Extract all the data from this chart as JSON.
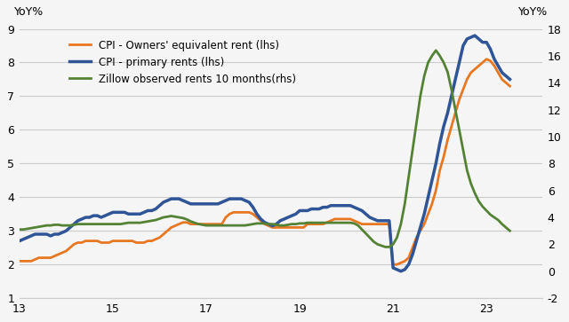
{
  "ylabel_left": "YoY%",
  "ylabel_right": "YoY%",
  "xlim": [
    13,
    24.2
  ],
  "ylim_left": [
    1,
    9
  ],
  "ylim_right": [
    -2,
    18
  ],
  "yticks_left": [
    1,
    2,
    3,
    4,
    5,
    6,
    7,
    8,
    9
  ],
  "yticks_right": [
    -2,
    0,
    2,
    4,
    6,
    8,
    10,
    12,
    14,
    16,
    18
  ],
  "xticks": [
    13,
    15,
    17,
    19,
    21,
    23
  ],
  "legend": [
    {
      "label": "CPI - Owners' equivalent rent (lhs)",
      "color": "#E87722",
      "lw": 2.0
    },
    {
      "label": "CPI - primary rents (lhs)",
      "color": "#2F5597",
      "lw": 2.5
    },
    {
      "label": "Zillow observed rents 10 months(rhs)",
      "color": "#548235",
      "lw": 2.0
    }
  ],
  "owners_eq_rent": {
    "x": [
      13.0,
      13.083,
      13.167,
      13.25,
      13.333,
      13.417,
      13.5,
      13.583,
      13.667,
      13.75,
      13.833,
      13.917,
      14.0,
      14.083,
      14.167,
      14.25,
      14.333,
      14.417,
      14.5,
      14.583,
      14.667,
      14.75,
      14.833,
      14.917,
      15.0,
      15.083,
      15.167,
      15.25,
      15.333,
      15.417,
      15.5,
      15.583,
      15.667,
      15.75,
      15.833,
      15.917,
      16.0,
      16.083,
      16.167,
      16.25,
      16.333,
      16.417,
      16.5,
      16.583,
      16.667,
      16.75,
      16.833,
      16.917,
      17.0,
      17.083,
      17.167,
      17.25,
      17.333,
      17.417,
      17.5,
      17.583,
      17.667,
      17.75,
      17.833,
      17.917,
      18.0,
      18.083,
      18.167,
      18.25,
      18.333,
      18.417,
      18.5,
      18.583,
      18.667,
      18.75,
      18.833,
      18.917,
      19.0,
      19.083,
      19.167,
      19.25,
      19.333,
      19.417,
      19.5,
      19.583,
      19.667,
      19.75,
      19.833,
      19.917,
      20.0,
      20.083,
      20.167,
      20.25,
      20.333,
      20.417,
      20.5,
      20.583,
      20.667,
      20.75,
      20.833,
      20.917,
      21.0,
      21.083,
      21.167,
      21.25,
      21.333,
      21.417,
      21.5,
      21.583,
      21.667,
      21.75,
      21.833,
      21.917,
      22.0,
      22.083,
      22.167,
      22.25,
      22.333,
      22.417,
      22.5,
      22.583,
      22.667,
      22.75,
      22.833,
      22.917,
      23.0,
      23.083,
      23.167,
      23.25,
      23.333,
      23.5
    ],
    "y": [
      2.1,
      2.1,
      2.1,
      2.1,
      2.15,
      2.2,
      2.2,
      2.2,
      2.2,
      2.25,
      2.3,
      2.35,
      2.4,
      2.5,
      2.6,
      2.65,
      2.65,
      2.7,
      2.7,
      2.7,
      2.7,
      2.65,
      2.65,
      2.65,
      2.7,
      2.7,
      2.7,
      2.7,
      2.7,
      2.7,
      2.65,
      2.65,
      2.65,
      2.7,
      2.7,
      2.75,
      2.8,
      2.9,
      3.0,
      3.1,
      3.15,
      3.2,
      3.25,
      3.25,
      3.2,
      3.2,
      3.2,
      3.2,
      3.2,
      3.2,
      3.2,
      3.2,
      3.2,
      3.4,
      3.5,
      3.55,
      3.55,
      3.55,
      3.55,
      3.55,
      3.5,
      3.4,
      3.3,
      3.2,
      3.15,
      3.1,
      3.1,
      3.1,
      3.1,
      3.1,
      3.1,
      3.1,
      3.1,
      3.1,
      3.2,
      3.2,
      3.2,
      3.2,
      3.2,
      3.25,
      3.3,
      3.35,
      3.35,
      3.35,
      3.35,
      3.35,
      3.3,
      3.25,
      3.2,
      3.2,
      3.2,
      3.2,
      3.2,
      3.2,
      3.2,
      3.2,
      2.0,
      2.0,
      2.05,
      2.1,
      2.2,
      2.5,
      2.8,
      3.0,
      3.2,
      3.5,
      3.8,
      4.2,
      4.8,
      5.2,
      5.7,
      6.1,
      6.5,
      6.9,
      7.2,
      7.5,
      7.7,
      7.8,
      7.9,
      8.0,
      8.1,
      8.05,
      7.9,
      7.7,
      7.5,
      7.3
    ]
  },
  "primary_rents": {
    "x": [
      13.0,
      13.083,
      13.167,
      13.25,
      13.333,
      13.417,
      13.5,
      13.583,
      13.667,
      13.75,
      13.833,
      13.917,
      14.0,
      14.083,
      14.167,
      14.25,
      14.333,
      14.417,
      14.5,
      14.583,
      14.667,
      14.75,
      14.833,
      14.917,
      15.0,
      15.083,
      15.167,
      15.25,
      15.333,
      15.417,
      15.5,
      15.583,
      15.667,
      15.75,
      15.833,
      15.917,
      16.0,
      16.083,
      16.167,
      16.25,
      16.333,
      16.417,
      16.5,
      16.583,
      16.667,
      16.75,
      16.833,
      16.917,
      17.0,
      17.083,
      17.167,
      17.25,
      17.333,
      17.417,
      17.5,
      17.583,
      17.667,
      17.75,
      17.833,
      17.917,
      18.0,
      18.083,
      18.167,
      18.25,
      18.333,
      18.417,
      18.5,
      18.583,
      18.667,
      18.75,
      18.833,
      18.917,
      19.0,
      19.083,
      19.167,
      19.25,
      19.333,
      19.417,
      19.5,
      19.583,
      19.667,
      19.75,
      19.833,
      19.917,
      20.0,
      20.083,
      20.167,
      20.25,
      20.333,
      20.417,
      20.5,
      20.583,
      20.667,
      20.75,
      20.833,
      20.917,
      21.0,
      21.083,
      21.167,
      21.25,
      21.333,
      21.417,
      21.5,
      21.583,
      21.667,
      21.75,
      21.833,
      21.917,
      22.0,
      22.083,
      22.167,
      22.25,
      22.333,
      22.417,
      22.5,
      22.583,
      22.667,
      22.75,
      22.833,
      22.917,
      23.0,
      23.083,
      23.167,
      23.25,
      23.333,
      23.5
    ],
    "y": [
      2.7,
      2.75,
      2.8,
      2.85,
      2.9,
      2.9,
      2.9,
      2.9,
      2.85,
      2.9,
      2.9,
      2.95,
      3.0,
      3.1,
      3.2,
      3.3,
      3.35,
      3.4,
      3.4,
      3.45,
      3.45,
      3.4,
      3.45,
      3.5,
      3.55,
      3.55,
      3.55,
      3.55,
      3.5,
      3.5,
      3.5,
      3.5,
      3.55,
      3.6,
      3.6,
      3.65,
      3.75,
      3.85,
      3.9,
      3.95,
      3.95,
      3.95,
      3.9,
      3.85,
      3.8,
      3.8,
      3.8,
      3.8,
      3.8,
      3.8,
      3.8,
      3.8,
      3.85,
      3.9,
      3.95,
      3.95,
      3.95,
      3.95,
      3.9,
      3.85,
      3.7,
      3.5,
      3.35,
      3.25,
      3.2,
      3.15,
      3.2,
      3.3,
      3.35,
      3.4,
      3.45,
      3.5,
      3.6,
      3.6,
      3.6,
      3.65,
      3.65,
      3.65,
      3.7,
      3.7,
      3.75,
      3.75,
      3.75,
      3.75,
      3.75,
      3.75,
      3.7,
      3.65,
      3.6,
      3.5,
      3.4,
      3.35,
      3.3,
      3.3,
      3.3,
      3.3,
      1.9,
      1.85,
      1.8,
      1.85,
      2.0,
      2.3,
      2.7,
      3.1,
      3.5,
      4.0,
      4.5,
      5.0,
      5.6,
      6.1,
      6.5,
      7.0,
      7.5,
      8.0,
      8.5,
      8.7,
      8.75,
      8.8,
      8.7,
      8.6,
      8.6,
      8.4,
      8.1,
      7.9,
      7.7,
      7.5
    ]
  },
  "zillow": {
    "x": [
      13.0,
      13.083,
      13.167,
      13.25,
      13.333,
      13.417,
      13.5,
      13.583,
      13.667,
      13.75,
      13.833,
      13.917,
      14.0,
      14.083,
      14.167,
      14.25,
      14.333,
      14.417,
      14.5,
      14.583,
      14.667,
      14.75,
      14.833,
      14.917,
      15.0,
      15.083,
      15.167,
      15.25,
      15.333,
      15.417,
      15.5,
      15.583,
      15.667,
      15.75,
      15.833,
      15.917,
      16.0,
      16.083,
      16.167,
      16.25,
      16.333,
      16.417,
      16.5,
      16.583,
      16.667,
      16.75,
      16.833,
      16.917,
      17.0,
      17.083,
      17.167,
      17.25,
      17.333,
      17.417,
      17.5,
      17.583,
      17.667,
      17.75,
      17.833,
      17.917,
      18.0,
      18.083,
      18.167,
      18.25,
      18.333,
      18.417,
      18.5,
      18.583,
      18.667,
      18.75,
      18.833,
      18.917,
      19.0,
      19.083,
      19.167,
      19.25,
      19.333,
      19.417,
      19.5,
      19.583,
      19.667,
      19.75,
      19.833,
      19.917,
      20.0,
      20.083,
      20.167,
      20.25,
      20.333,
      20.417,
      20.5,
      20.583,
      20.667,
      20.75,
      20.833,
      20.917,
      21.0,
      21.083,
      21.167,
      21.25,
      21.333,
      21.417,
      21.5,
      21.583,
      21.667,
      21.75,
      21.833,
      21.917,
      22.0,
      22.083,
      22.167,
      22.25,
      22.333,
      22.417,
      22.5,
      22.583,
      22.667,
      22.75,
      22.833,
      22.917,
      23.0,
      23.083,
      23.167,
      23.25,
      23.333,
      23.5
    ],
    "y": [
      3.1,
      3.1,
      3.15,
      3.2,
      3.25,
      3.3,
      3.35,
      3.4,
      3.4,
      3.45,
      3.45,
      3.4,
      3.4,
      3.4,
      3.45,
      3.5,
      3.5,
      3.5,
      3.5,
      3.5,
      3.5,
      3.5,
      3.5,
      3.5,
      3.5,
      3.5,
      3.5,
      3.55,
      3.6,
      3.6,
      3.6,
      3.6,
      3.65,
      3.7,
      3.75,
      3.8,
      3.9,
      4.0,
      4.05,
      4.1,
      4.05,
      4.0,
      3.95,
      3.85,
      3.7,
      3.6,
      3.5,
      3.45,
      3.4,
      3.4,
      3.4,
      3.4,
      3.4,
      3.4,
      3.4,
      3.4,
      3.4,
      3.4,
      3.4,
      3.45,
      3.5,
      3.55,
      3.55,
      3.55,
      3.5,
      3.5,
      3.45,
      3.4,
      3.4,
      3.45,
      3.5,
      3.5,
      3.55,
      3.55,
      3.6,
      3.6,
      3.6,
      3.6,
      3.6,
      3.6,
      3.6,
      3.6,
      3.6,
      3.6,
      3.6,
      3.6,
      3.55,
      3.4,
      3.1,
      2.8,
      2.5,
      2.2,
      2.0,
      1.9,
      1.8,
      1.8,
      2.0,
      2.5,
      3.5,
      5.0,
      7.0,
      9.0,
      11.0,
      13.0,
      14.5,
      15.5,
      16.0,
      16.4,
      16.0,
      15.5,
      14.8,
      13.5,
      12.0,
      10.5,
      9.0,
      7.5,
      6.5,
      5.8,
      5.2,
      4.8,
      4.5,
      4.2,
      4.0,
      3.8,
      3.5,
      3.0
    ]
  },
  "bg_color": "#f5f5f5",
  "grid_color": "#cccccc",
  "orange_color": "#E87722",
  "blue_color": "#2F5597",
  "green_color": "#548235"
}
